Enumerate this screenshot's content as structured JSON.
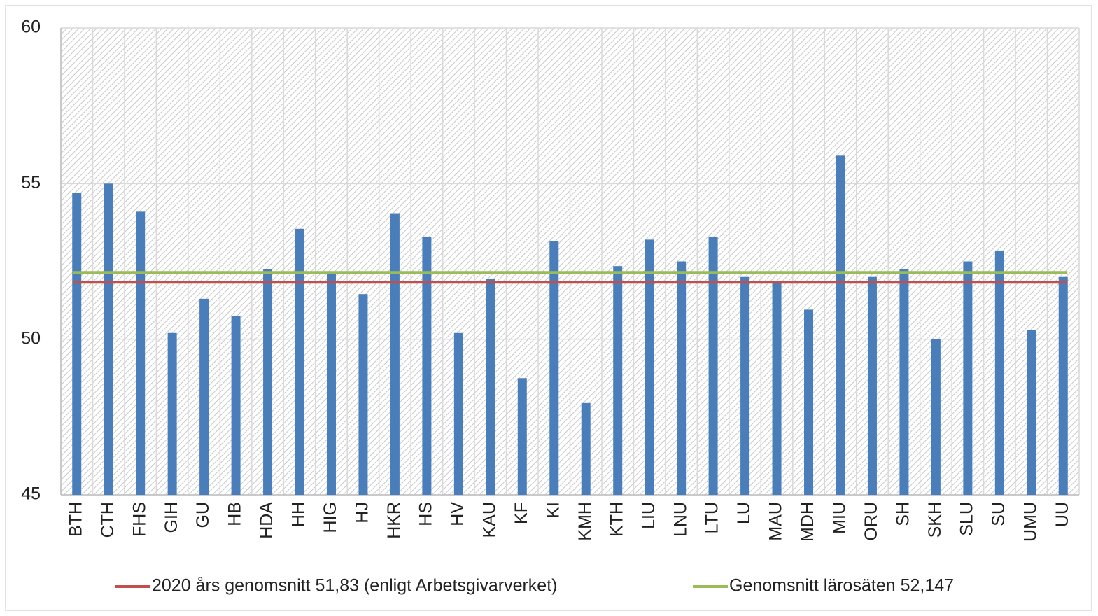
{
  "chart_data": {
    "type": "bar",
    "categories": [
      "BTH",
      "CTH",
      "FHS",
      "GIH",
      "GU",
      "HB",
      "HDA",
      "HH",
      "HIG",
      "HJ",
      "HKR",
      "HS",
      "HV",
      "KAU",
      "KF",
      "KI",
      "KMH",
      "KTH",
      "LIU",
      "LNU",
      "LTU",
      "LU",
      "MAU",
      "MDH",
      "MIU",
      "ORU",
      "SH",
      "SKH",
      "SLU",
      "SU",
      "UMU",
      "UU"
    ],
    "values": [
      54.7,
      55.0,
      54.1,
      50.2,
      51.3,
      50.75,
      52.25,
      53.55,
      52.15,
      51.45,
      54.05,
      53.3,
      50.2,
      51.95,
      48.75,
      53.15,
      47.95,
      52.35,
      53.2,
      52.5,
      53.3,
      52.0,
      51.85,
      50.95,
      55.9,
      52.0,
      52.25,
      50.0,
      52.5,
      52.85,
      50.3,
      52.0
    ],
    "color": "#4a7ebb",
    "reference_lines": [
      {
        "name": "2020 års genomsnitt 51,83 (enligt Arbetsgivarverket)",
        "value": 51.83,
        "color": "#c0504d"
      },
      {
        "name": "Genomsnitt lärosäten 52,147",
        "value": 52.147,
        "color": "#9bbb59"
      }
    ],
    "ylim": [
      45,
      60
    ],
    "yticks": [
      45,
      50,
      55,
      60
    ],
    "grid": true,
    "legend": "bottom"
  }
}
